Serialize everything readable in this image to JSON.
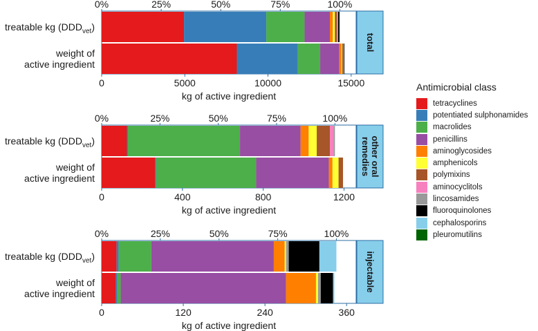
{
  "legend": {
    "title": "Antimicrobial class",
    "classes": [
      {
        "name": "tetracyclines",
        "color": "#e41a1c"
      },
      {
        "name": "potentiated sulphonamides",
        "color": "#377eb8"
      },
      {
        "name": "macrolides",
        "color": "#4daf4a"
      },
      {
        "name": "penicillins",
        "color": "#984ea3"
      },
      {
        "name": "aminoglycosides",
        "color": "#ff7f00"
      },
      {
        "name": "amphenicols",
        "color": "#ffff33"
      },
      {
        "name": "polymixins",
        "color": "#a65628"
      },
      {
        "name": "aminocyclitols",
        "color": "#f781bf"
      },
      {
        "name": "lincosamides",
        "color": "#999999"
      },
      {
        "name": "fluoroquinolones",
        "color": "#000000"
      },
      {
        "name": "cephalosporins",
        "color": "#87ceeb"
      },
      {
        "name": "pleuromutilins",
        "color": "#006400"
      }
    ]
  },
  "chart_data": [
    {
      "type": "bar",
      "orientation": "horizontal",
      "stacked": true,
      "facet_label": "total",
      "categories": [
        "treatable kg (DDDvet)",
        "weight of active ingredient"
      ],
      "xlabel": "kg of active ingredient",
      "xlim": [
        0,
        15300
      ],
      "x_ticks": [
        0,
        5000,
        10000,
        15000
      ],
      "x_tick_labels": [
        "0",
        "5000",
        "10000",
        "15000"
      ],
      "pct_ticks": [
        "0%",
        "25%",
        "50%",
        "75%",
        "100%"
      ],
      "series": [
        {
          "name": "tetracyclines",
          "values": [
            4950,
            8130
          ]
        },
        {
          "name": "potentiated sulphonamides",
          "values": [
            4950,
            3670
          ]
        },
        {
          "name": "macrolides",
          "values": [
            2300,
            1340
          ]
        },
        {
          "name": "penicillins",
          "values": [
            1520,
            1150
          ]
        },
        {
          "name": "aminoglycosides",
          "values": [
            180,
            130
          ]
        },
        {
          "name": "amphenicols",
          "values": [
            120,
            40
          ]
        },
        {
          "name": "polymixins",
          "values": [
            120,
            80
          ]
        },
        {
          "name": "aminocyclitols",
          "values": [
            30,
            0
          ]
        },
        {
          "name": "lincosamides",
          "values": [
            50,
            30
          ]
        },
        {
          "name": "fluoroquinolones",
          "values": [
            80,
            30
          ]
        },
        {
          "name": "cephalosporins",
          "values": [
            20,
            0
          ]
        },
        {
          "name": "pleuromutilins",
          "values": [
            0,
            0
          ]
        }
      ]
    },
    {
      "type": "bar",
      "orientation": "horizontal",
      "stacked": true,
      "facet_label": "other oral remedies",
      "categories": [
        "treatable kg (DDDvet)",
        "weight of active ingredient"
      ],
      "xlabel": "kg of active ingredient",
      "xlim": [
        0,
        1260
      ],
      "x_ticks": [
        0,
        400,
        800,
        1200
      ],
      "x_tick_labels": [
        "0",
        "400",
        "800",
        "1200"
      ],
      "pct_ticks": [
        "0%",
        "25%",
        "50%",
        "75%",
        "100%"
      ],
      "series": [
        {
          "name": "tetracyclines",
          "values": [
            125,
            265
          ]
        },
        {
          "name": "potentiated sulphonamides",
          "values": [
            5,
            5
          ]
        },
        {
          "name": "macrolides",
          "values": [
            555,
            495
          ]
        },
        {
          "name": "penicillins",
          "values": [
            300,
            360
          ]
        },
        {
          "name": "aminoglycosides",
          "values": [
            40,
            18
          ]
        },
        {
          "name": "amphenicols",
          "values": [
            40,
            30
          ]
        },
        {
          "name": "polymixins",
          "values": [
            65,
            22
          ]
        },
        {
          "name": "aminocyclitols",
          "values": [
            18,
            0
          ]
        },
        {
          "name": "lincosamides",
          "values": [
            7,
            0
          ]
        },
        {
          "name": "fluoroquinolones",
          "values": [
            0,
            0
          ]
        },
        {
          "name": "cephalosporins",
          "values": [
            0,
            0
          ]
        },
        {
          "name": "pleuromutilins",
          "values": [
            0,
            0
          ]
        }
      ]
    },
    {
      "type": "bar",
      "orientation": "horizontal",
      "stacked": true,
      "facet_label": "injectable",
      "categories": [
        "treatable kg (DDDvet)",
        "weight of active ingredient"
      ],
      "xlabel": "kg of active ingredient",
      "xlim": [
        0,
        374
      ],
      "x_ticks": [
        0,
        120,
        240,
        360
      ],
      "x_tick_labels": [
        "0",
        "120",
        "240",
        "360"
      ],
      "pct_ticks": [
        "0%",
        "25%",
        "50%",
        "75%",
        "100%"
      ],
      "series": [
        {
          "name": "tetracyclines",
          "values": [
            22,
            21
          ]
        },
        {
          "name": "potentiated sulphonamides",
          "values": [
            3,
            2
          ]
        },
        {
          "name": "macrolides",
          "values": [
            48,
            5
          ]
        },
        {
          "name": "penicillins",
          "values": [
            180,
            243
          ]
        },
        {
          "name": "aminoglycosides",
          "values": [
            16,
            44
          ]
        },
        {
          "name": "amphenicols",
          "values": [
            2,
            3
          ]
        },
        {
          "name": "polymixins",
          "values": [
            0,
            0
          ]
        },
        {
          "name": "aminocyclitols",
          "values": [
            0,
            0
          ]
        },
        {
          "name": "lincosamides",
          "values": [
            4,
            4
          ]
        },
        {
          "name": "fluoroquinolones",
          "values": [
            45,
            18
          ]
        },
        {
          "name": "cephalosporins",
          "values": [
            25,
            2
          ]
        },
        {
          "name": "pleuromutilins",
          "values": [
            0,
            0
          ]
        }
      ]
    }
  ]
}
